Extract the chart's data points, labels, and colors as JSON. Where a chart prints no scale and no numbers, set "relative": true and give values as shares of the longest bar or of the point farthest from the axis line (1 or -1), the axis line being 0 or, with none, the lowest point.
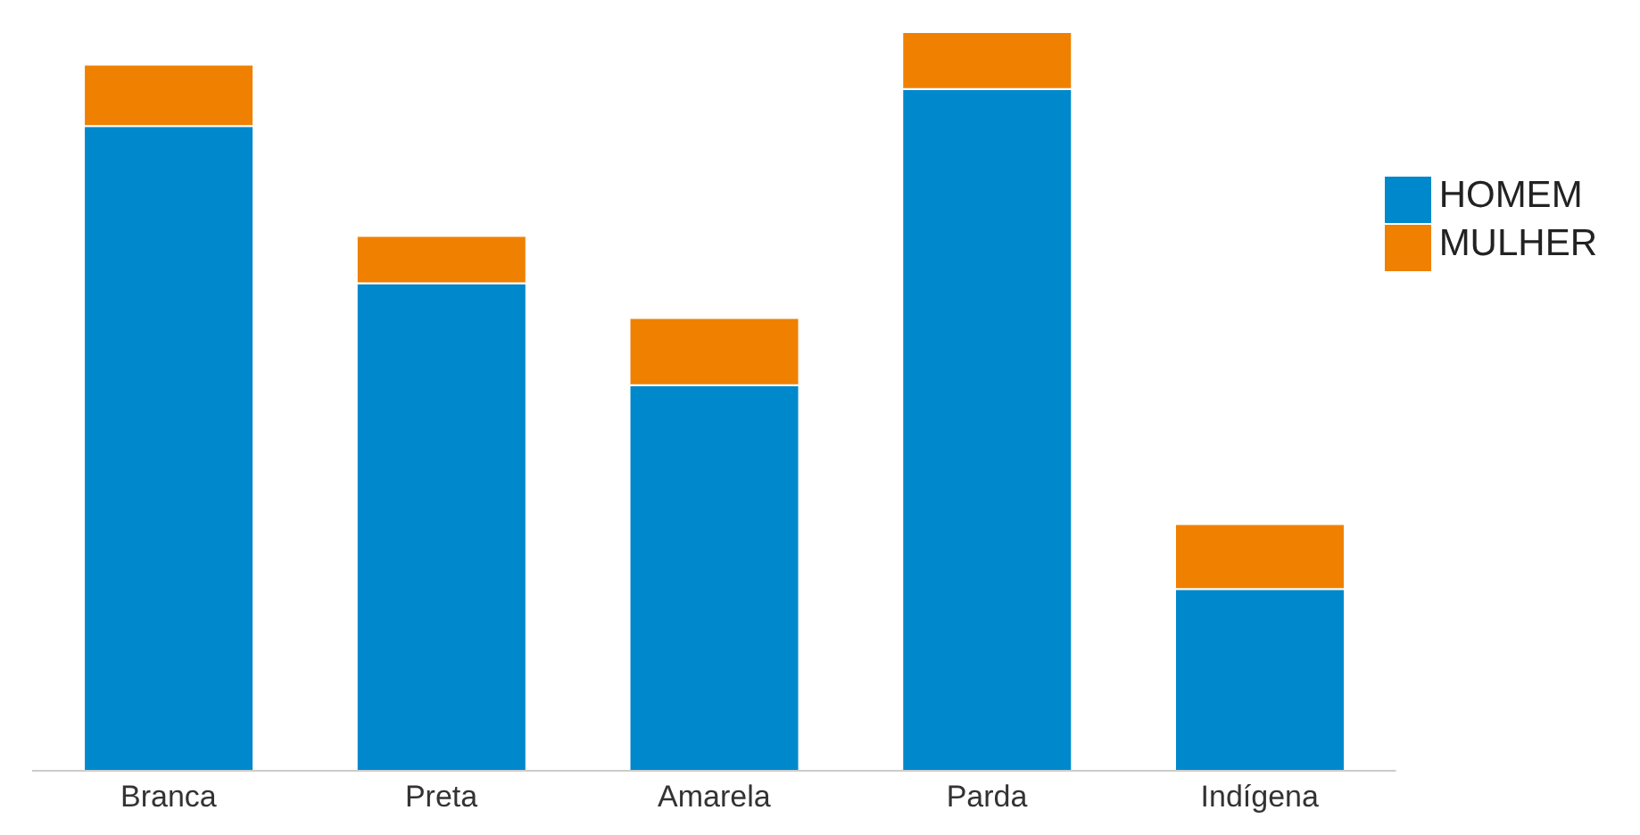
{
  "chart_data": {
    "type": "bar",
    "stacked": true,
    "relative": true,
    "categories": [
      "Branca",
      "Preta",
      "Amarela",
      "Parda",
      "Indígena"
    ],
    "series": [
      {
        "name": "HOMEM",
        "color": "#0088cc",
        "values": [
          0.873,
          0.66,
          0.522,
          0.923,
          0.246
        ]
      },
      {
        "name": "MULHER",
        "color": "#f08000",
        "values": [
          0.083,
          0.064,
          0.091,
          0.077,
          0.088
        ]
      }
    ],
    "legend": "right"
  }
}
